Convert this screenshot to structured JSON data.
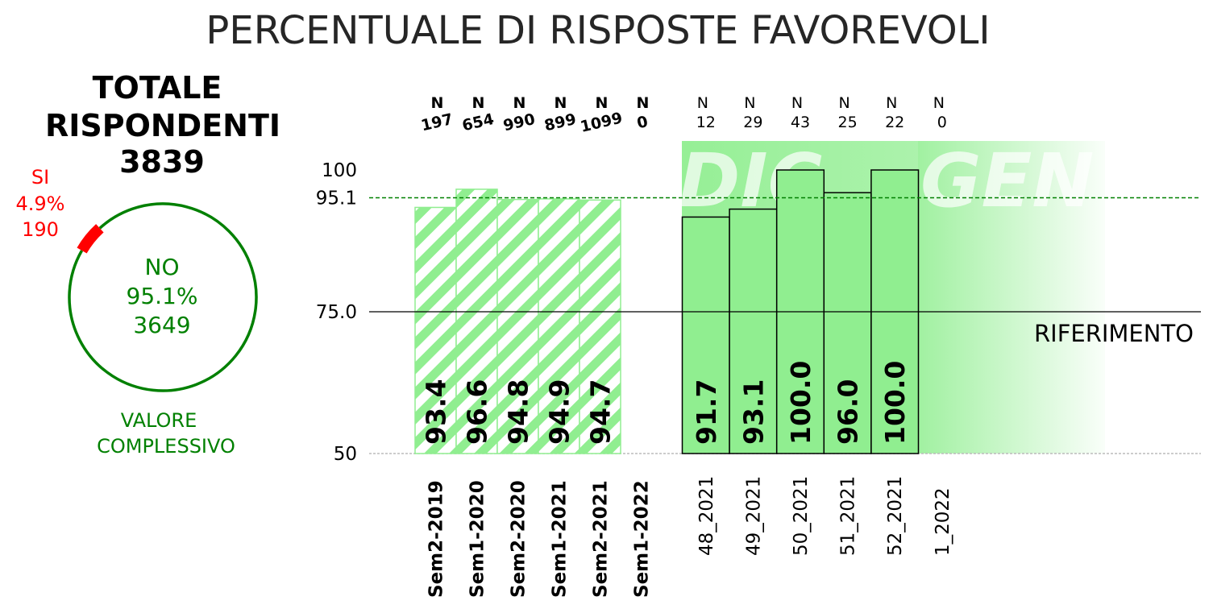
{
  "title": "PERCENTUALE DI RISPOSTE FAVOREVOLI",
  "summary": {
    "heading_line1": "TOTALE",
    "heading_line2": "RISPONDENTI",
    "total": "3839",
    "si": {
      "label": "SI",
      "pct": "4.9%",
      "count": "190",
      "fraction": 0.049,
      "color": "#ff0000"
    },
    "no": {
      "label": "NO",
      "pct": "95.1%",
      "count": "3649",
      "fraction": 0.951,
      "color": "#008000"
    },
    "caption_line1": "VALORE",
    "caption_line2": "COMPLESSIVO"
  },
  "chart_data": {
    "type": "bar",
    "ylim": [
      50,
      105
    ],
    "yticks": [
      {
        "value": 50,
        "label": "50"
      },
      {
        "value": 75,
        "label": "75.0"
      },
      {
        "value": 95.1,
        "label": "95.1"
      },
      {
        "value": 100,
        "label": "100"
      }
    ],
    "reference": {
      "value": 75,
      "label": "RIFERIMENTO"
    },
    "overall_line": {
      "value": 95.1
    },
    "semesters": [
      {
        "category": "Sem2-2019",
        "value": 93.4,
        "label": "93.4",
        "n_label": "N",
        "n": "197"
      },
      {
        "category": "Sem1-2020",
        "value": 96.6,
        "label": "96.6",
        "n_label": "N",
        "n": "654"
      },
      {
        "category": "Sem2-2020",
        "value": 94.8,
        "label": "94.8",
        "n_label": "N",
        "n": "990"
      },
      {
        "category": "Sem1-2021",
        "value": 94.9,
        "label": "94.9",
        "n_label": "N",
        "n": "899"
      },
      {
        "category": "Sem2-2021",
        "value": 94.7,
        "label": "94.7",
        "n_label": "N",
        "n": "1099"
      },
      {
        "category": "Sem1-2022",
        "value": null,
        "label": "",
        "n_label": "N",
        "n": "0"
      }
    ],
    "weeks": [
      {
        "category": "48_2021",
        "value": 91.7,
        "label": "91.7",
        "n_label": "N",
        "n": "12"
      },
      {
        "category": "49_2021",
        "value": 93.1,
        "label": "93.1",
        "n_label": "N",
        "n": "29"
      },
      {
        "category": "50_2021",
        "value": 100.0,
        "label": "100.0",
        "n_label": "N",
        "n": "43"
      },
      {
        "category": "51_2021",
        "value": 96.0,
        "label": "96.0",
        "n_label": "N",
        "n": "25"
      },
      {
        "category": "52_2021",
        "value": 100.0,
        "label": "100.0",
        "n_label": "N",
        "n": "22"
      },
      {
        "category": "1_2022",
        "value": null,
        "label": "",
        "n_label": "N",
        "n": "0"
      }
    ],
    "month_watermarks": [
      "DIC",
      "GEN"
    ],
    "colors": {
      "bar_fill": "#90ee90",
      "reference_line": "#000000",
      "overall_line": "#008000"
    }
  }
}
